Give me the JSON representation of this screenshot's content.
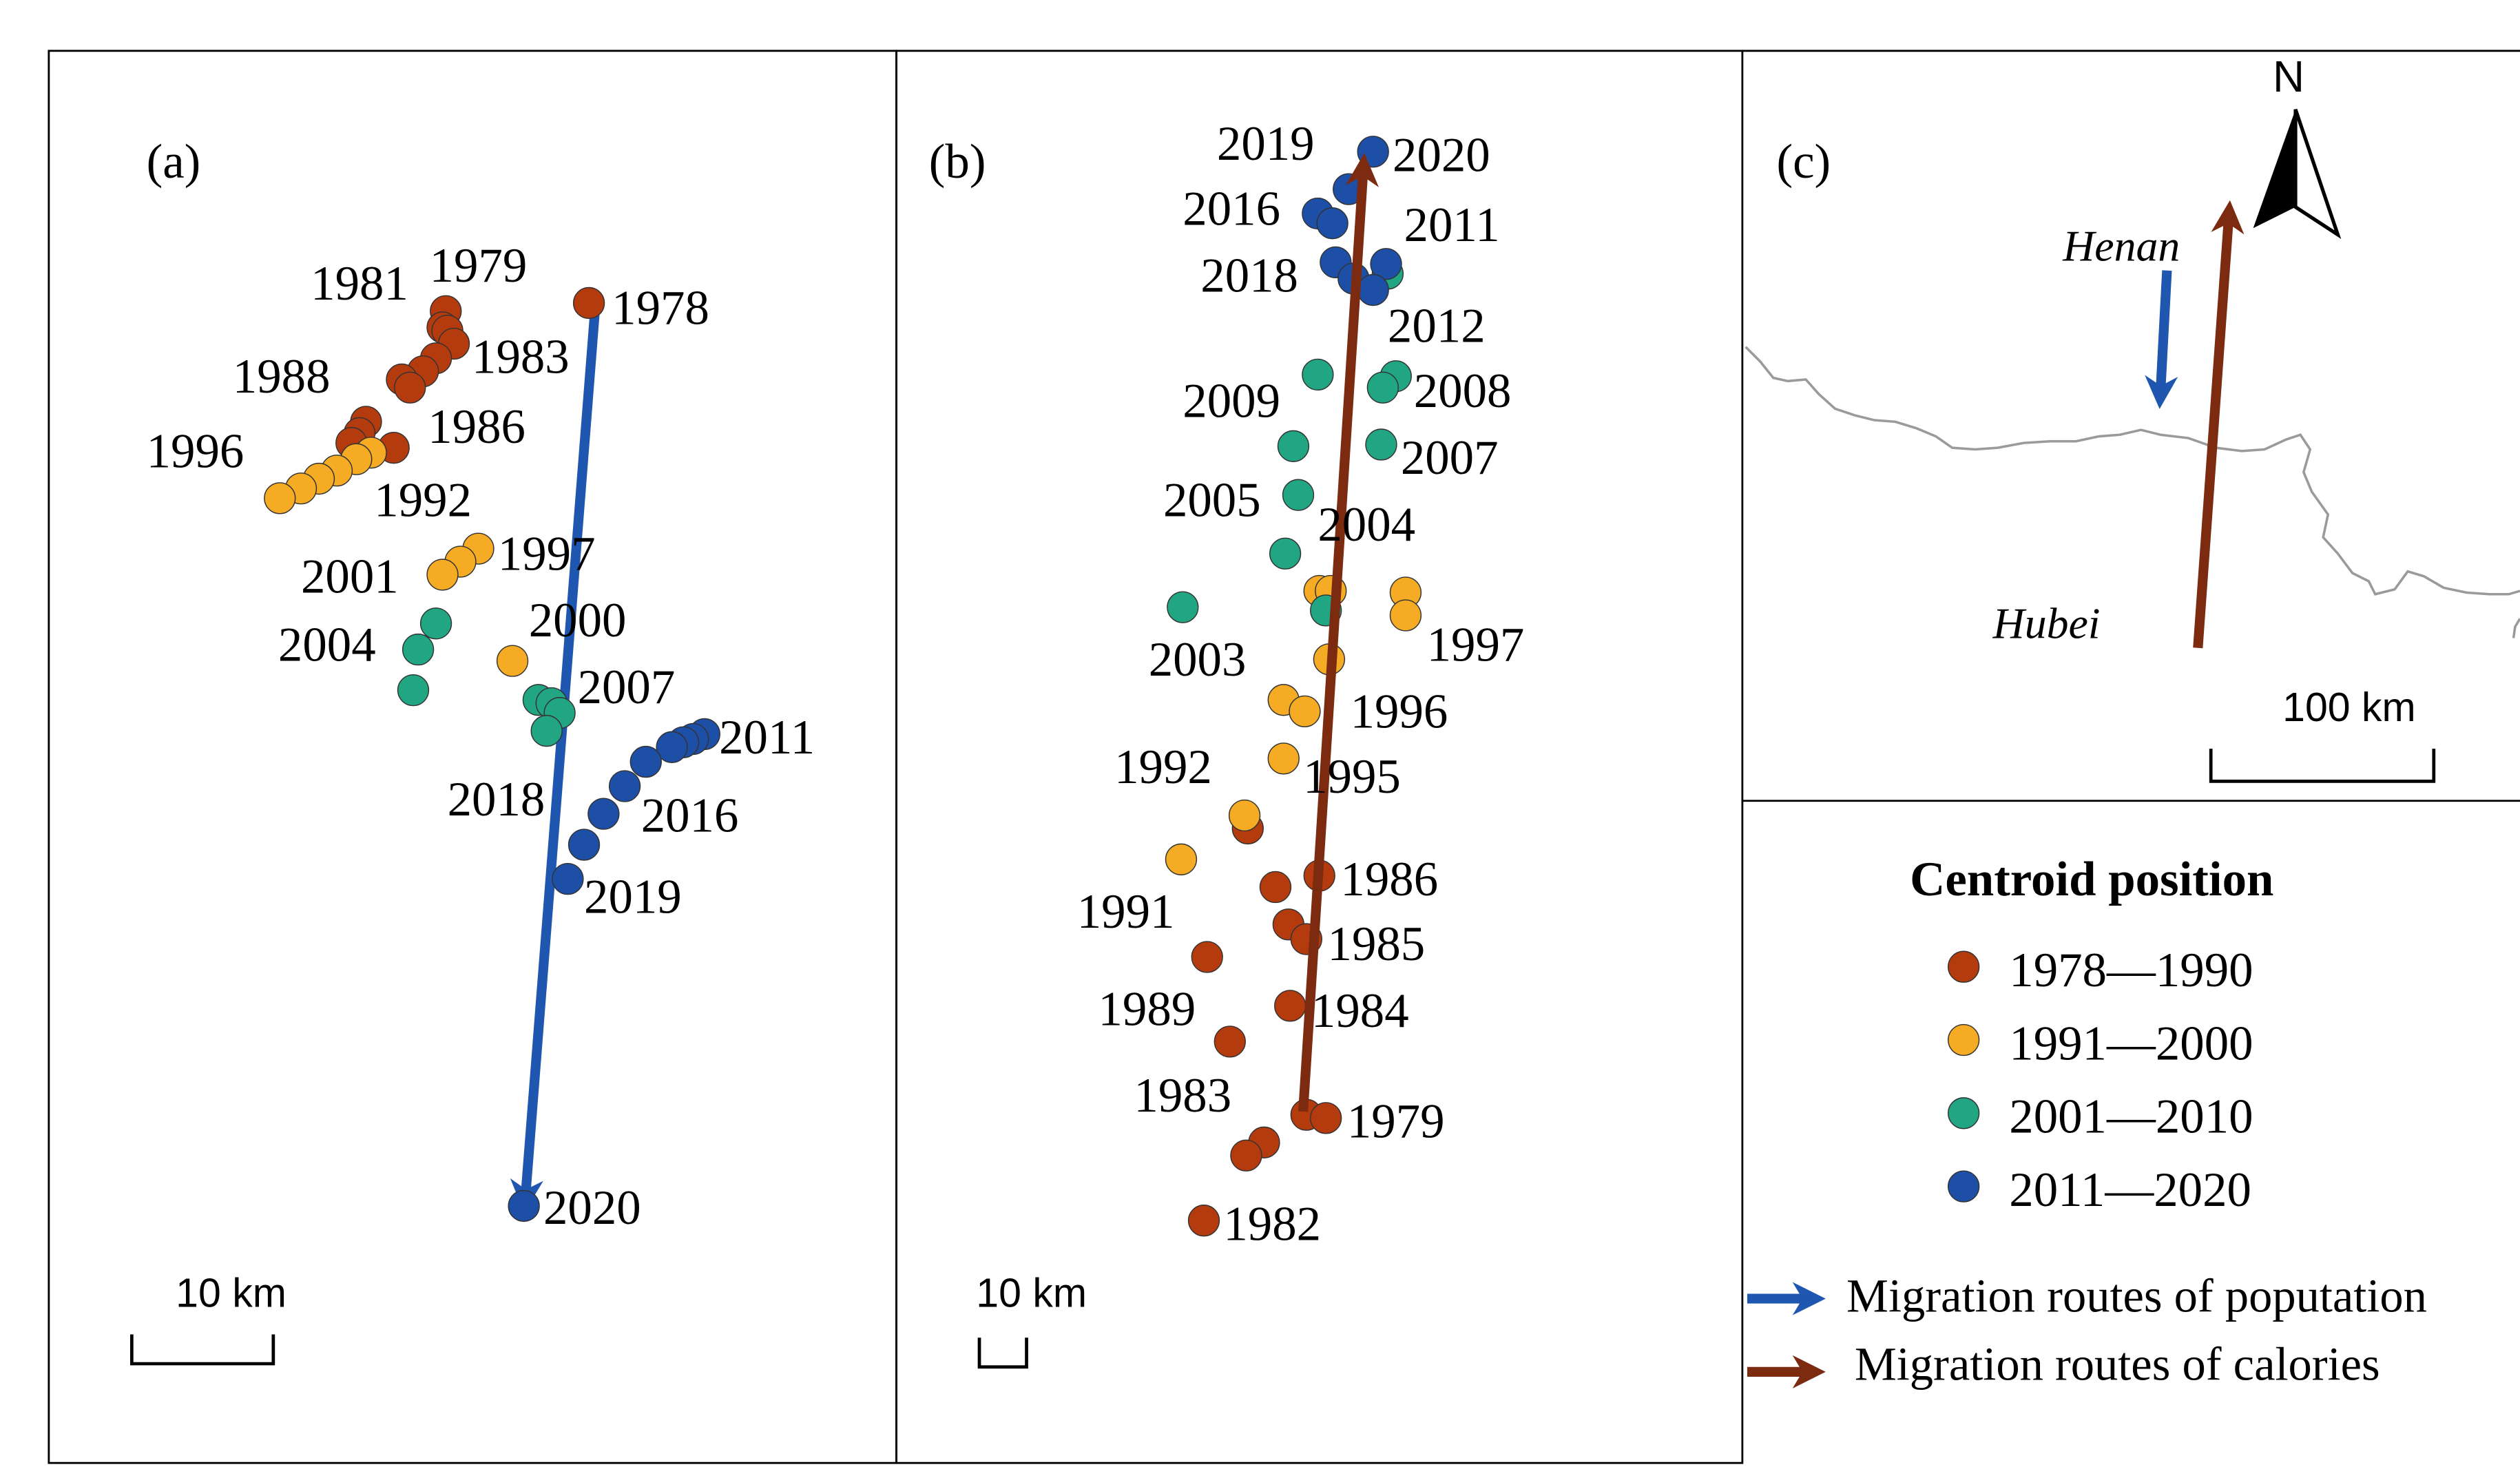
{
  "colors": {
    "c1978_1990": "#b33b0e",
    "c1991_2000": "#f5ac24",
    "c2001_2010": "#21a582",
    "c2011_2020": "#1e4fa6",
    "population_arrow": "#1f56b0",
    "calories_arrow": "#7c2a10",
    "boundary": "#9a9a9a"
  },
  "panel_a": {
    "label": "(a)",
    "scale_label": "10 km",
    "year_labels": {
      "y1981": "1981",
      "y1979": "1979",
      "y1978": "1978",
      "y1983": "1983",
      "y1988": "1988",
      "y1986": "1986",
      "y1996": "1996",
      "y1992": "1992",
      "y1997": "1997",
      "y2001": "2001",
      "y2000": "2000",
      "y2004": "2004",
      "y2007": "2007",
      "y2011": "2011",
      "y2018": "2018",
      "y2016": "2016",
      "y2019": "2019",
      "y2020": "2020"
    }
  },
  "panel_b": {
    "label": "(b)",
    "scale_label": "10 km",
    "year_labels": {
      "y2019": "2019",
      "y2020": "2020",
      "y2016": "2016",
      "y2011": "2011",
      "y2018": "2018",
      "y2012": "2012",
      "y2009": "2009",
      "y2008": "2008",
      "y2007": "2007",
      "y2005": "2005",
      "y2004": "2004",
      "y2003": "2003",
      "y1997": "1997",
      "y1996": "1996",
      "y1992": "1992",
      "y1995": "1995",
      "y1991": "1991",
      "y1986": "1986",
      "y1985": "1985",
      "y1989": "1989",
      "y1984": "1984",
      "y1983": "1983",
      "y1979": "1979",
      "y1982": "1982"
    }
  },
  "panel_c": {
    "label": "(c)",
    "north_label": "N",
    "henan_label": "Henan",
    "hubei_label": "Hubei",
    "scale_label": "100 km"
  },
  "legend": {
    "title": "Centroid position",
    "items": [
      "1978—1990",
      "1991—2000",
      "2001—2010",
      "2011—2020"
    ],
    "population_route": "Migration routes of poputation",
    "calories_route": "Migration routes of calories"
  }
}
